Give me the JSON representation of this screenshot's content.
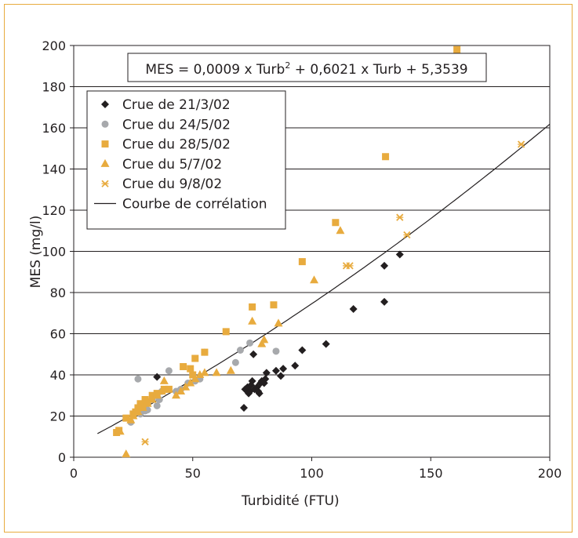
{
  "chart_data": {
    "type": "scatter",
    "xlabel": "Turbidité (FTU)",
    "ylabel": "MES (mg/l)",
    "xlim": [
      0,
      200
    ],
    "ylim": [
      0,
      200
    ],
    "x_ticks": [
      0,
      50,
      100,
      150,
      200
    ],
    "y_ticks": [
      0,
      20,
      40,
      60,
      80,
      100,
      120,
      140,
      160,
      180,
      200
    ],
    "grid": "horizontal",
    "legend_position": "top-left",
    "equation_prefix": "MES = 0,0009 x Turb",
    "equation_sup": "2",
    "equation_suffix": " + 0,6021 x Turb + 5,3539",
    "series": [
      {
        "name": "Crue de 21/3/02",
        "marker": "diamond",
        "color": "#231f20",
        "points": [
          [
            35,
            39
          ],
          [
            71.5,
            24
          ],
          [
            72,
            33
          ],
          [
            73,
            34
          ],
          [
            73.5,
            31
          ],
          [
            74,
            32
          ],
          [
            74.5,
            35
          ],
          [
            75,
            37
          ],
          [
            75.5,
            50
          ],
          [
            76,
            33
          ],
          [
            77,
            34
          ],
          [
            77.5,
            32
          ],
          [
            78,
            31
          ],
          [
            78.5,
            36
          ],
          [
            79,
            37
          ],
          [
            80,
            36
          ],
          [
            80.5,
            38
          ],
          [
            81,
            41
          ],
          [
            85,
            42
          ],
          [
            87,
            39.5
          ],
          [
            88,
            43
          ],
          [
            93,
            44.5
          ],
          [
            96,
            52
          ],
          [
            106,
            55
          ],
          [
            117.5,
            72
          ],
          [
            130.5,
            75.5
          ],
          [
            130.5,
            93
          ],
          [
            137,
            98.5
          ]
        ]
      },
      {
        "name": "Crue du 24/5/02",
        "marker": "circle",
        "color": "#a7a9ac",
        "points": [
          [
            24,
            17
          ],
          [
            27,
            38
          ],
          [
            28,
            21
          ],
          [
            30,
            22.5
          ],
          [
            31,
            23
          ],
          [
            33,
            28
          ],
          [
            35,
            25
          ],
          [
            36,
            28
          ],
          [
            37,
            32
          ],
          [
            40,
            42
          ],
          [
            43,
            32
          ],
          [
            45,
            33
          ],
          [
            48,
            36
          ],
          [
            51,
            37
          ],
          [
            53,
            38
          ],
          [
            55,
            51
          ],
          [
            68,
            46
          ],
          [
            70,
            52
          ],
          [
            74,
            55.5
          ],
          [
            85,
            51.5
          ]
        ]
      },
      {
        "name": "Crue du 28/5/02",
        "marker": "square",
        "color": "#e8ab3e",
        "points": [
          [
            18,
            12
          ],
          [
            19,
            13
          ],
          [
            22,
            19
          ],
          [
            25,
            21
          ],
          [
            26,
            22
          ],
          [
            27,
            24
          ],
          [
            28,
            26
          ],
          [
            29,
            25
          ],
          [
            30,
            28
          ],
          [
            31,
            27
          ],
          [
            33,
            30
          ],
          [
            35,
            31
          ],
          [
            38,
            33
          ],
          [
            40,
            33
          ],
          [
            46,
            44
          ],
          [
            49,
            43
          ],
          [
            50,
            40
          ],
          [
            51,
            48
          ],
          [
            55,
            51
          ],
          [
            64,
            61
          ],
          [
            75,
            73
          ],
          [
            84,
            74
          ],
          [
            96,
            95
          ],
          [
            110,
            114
          ],
          [
            131,
            146
          ],
          [
            161,
            198
          ]
        ]
      },
      {
        "name": "Crue du 5/7/02",
        "marker": "triangle",
        "color": "#e8ab3e",
        "points": [
          [
            19.5,
            12.5
          ],
          [
            22,
            1.5
          ],
          [
            24,
            18
          ],
          [
            25,
            20
          ],
          [
            27,
            22
          ],
          [
            29,
            24
          ],
          [
            31,
            26
          ],
          [
            33,
            28
          ],
          [
            35,
            30
          ],
          [
            37,
            32
          ],
          [
            38,
            37
          ],
          [
            43,
            30
          ],
          [
            45,
            32
          ],
          [
            47,
            34
          ],
          [
            49,
            36
          ],
          [
            51,
            38
          ],
          [
            53,
            40
          ],
          [
            55,
            41
          ],
          [
            60,
            41
          ],
          [
            66,
            42
          ],
          [
            75,
            66
          ],
          [
            79,
            55
          ],
          [
            80,
            57
          ],
          [
            86,
            65
          ],
          [
            101,
            86
          ],
          [
            112,
            110
          ]
        ]
      },
      {
        "name": "Crue du 9/8/02",
        "marker": "x",
        "color": "#e8ab3e",
        "points": [
          [
            30,
            7.5
          ],
          [
            114.5,
            93
          ],
          [
            116,
            93
          ],
          [
            137,
            116.5
          ],
          [
            140,
            108
          ],
          [
            188,
            152
          ]
        ]
      },
      {
        "name": "Courbe de corrélation",
        "marker": "line",
        "color": "#231f20",
        "equation": {
          "a": 0.0009,
          "b": 0.6021,
          "c": 5.3539
        },
        "x_range": [
          10,
          200
        ]
      }
    ]
  }
}
